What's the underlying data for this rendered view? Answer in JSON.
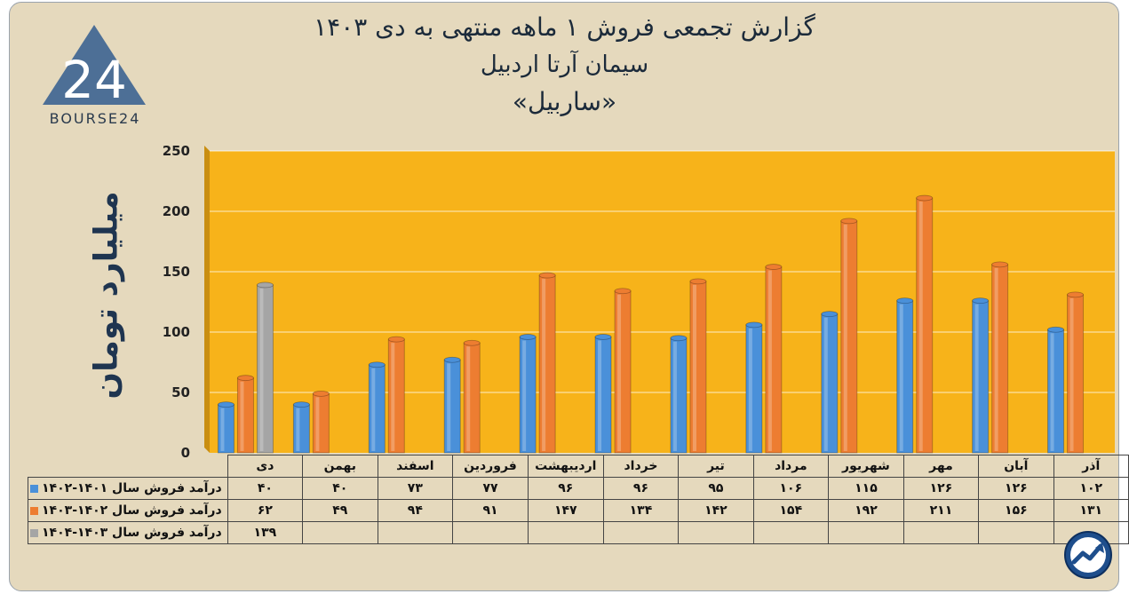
{
  "titles": {
    "line1": "گزارش تجمعی فروش ۱ ماهه منتهی به دی ۱۴۰۳",
    "line2": "سیمان آرتا اردبیل",
    "line3": "«ساربیل»"
  },
  "logo": {
    "brand": "BOURSE24",
    "mark": "24"
  },
  "chart_data": {
    "type": "bar",
    "ylabel": "میلیارد تومان",
    "ylim": [
      0,
      250
    ],
    "yticks": [
      0,
      50,
      100,
      150,
      200,
      250
    ],
    "ytick_labels": [
      "0",
      "50",
      "100",
      "150",
      "200",
      "250"
    ],
    "grid": true,
    "categories": [
      "دی",
      "بهمن",
      "اسفند",
      "فروردین",
      "اردیبهشت",
      "خرداد",
      "تیر",
      "مرداد",
      "شهریور",
      "مهر",
      "آبان",
      "آذر"
    ],
    "series": [
      {
        "name": "درآمد فروش سال ۱۴۰۱-۱۴۰۲",
        "color": "#4a90d9",
        "values": [
          40,
          40,
          73,
          77,
          96,
          96,
          95,
          106,
          115,
          126,
          126,
          102
        ],
        "labels": [
          "۴۰",
          "۴۰",
          "۷۳",
          "۷۷",
          "۹۶",
          "۹۶",
          "۹۵",
          "۱۰۶",
          "۱۱۵",
          "۱۲۶",
          "۱۲۶",
          "۱۰۲"
        ]
      },
      {
        "name": "درآمد فروش سال ۱۴۰۲-۱۴۰۳",
        "color": "#ed7d31",
        "values": [
          62,
          49,
          94,
          91,
          147,
          134,
          142,
          154,
          192,
          211,
          156,
          131
        ],
        "labels": [
          "۶۲",
          "۴۹",
          "۹۴",
          "۹۱",
          "۱۴۷",
          "۱۳۴",
          "۱۴۲",
          "۱۵۴",
          "۱۹۲",
          "۲۱۱",
          "۱۵۶",
          "۱۳۱"
        ]
      },
      {
        "name": "درآمد فروش سال ۱۴۰۳-۱۴۰۴",
        "color": "#a5a5a5",
        "values": [
          139,
          null,
          null,
          null,
          null,
          null,
          null,
          null,
          null,
          null,
          null,
          null
        ],
        "labels": [
          "۱۳۹",
          "",
          "",
          "",
          "",
          "",
          "",
          "",
          "",
          "",
          "",
          ""
        ]
      }
    ]
  }
}
